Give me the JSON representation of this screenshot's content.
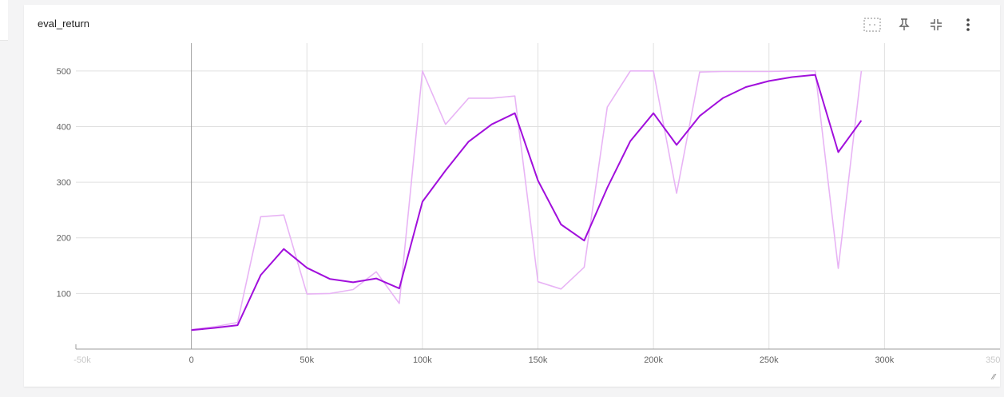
{
  "card": {
    "title": "eval_return",
    "toolbar": [
      {
        "name": "fit-domain-button",
        "icon": "fit-domain-icon"
      },
      {
        "name": "pin-button",
        "icon": "pin-icon"
      },
      {
        "name": "collapse-button",
        "icon": "collapse-icon"
      },
      {
        "name": "more-options-button",
        "icon": "more-vert-icon"
      }
    ]
  },
  "colors": {
    "smoothed": "#a10fdc",
    "raw": "#e8b4f5",
    "grid": "#e0e0e0",
    "axis": "#9e9e9e"
  },
  "chart_data": {
    "type": "line",
    "title": "eval_return",
    "xlabel": "",
    "ylabel": "",
    "xlim": [
      -50000,
      350000
    ],
    "ylim": [
      0,
      550
    ],
    "x_ticks": [
      0,
      50000,
      100000,
      150000,
      200000,
      250000,
      300000
    ],
    "x_tick_labels": [
      "0",
      "50k",
      "100k",
      "150k",
      "200k",
      "250k",
      "300k"
    ],
    "x_tick_faint_labels": [
      "-50k",
      "350k"
    ],
    "y_ticks": [
      100,
      200,
      300,
      400,
      500
    ],
    "y_tick_labels": [
      "100",
      "200",
      "300",
      "400",
      "500"
    ],
    "grid": true,
    "x": [
      0,
      10000,
      20000,
      30000,
      40000,
      50000,
      60000,
      70000,
      80000,
      90000,
      100000,
      110000,
      120000,
      130000,
      140000,
      150000,
      160000,
      170000,
      180000,
      190000,
      200000,
      210000,
      220000,
      230000,
      240000,
      250000,
      260000,
      270000,
      280000,
      290000
    ],
    "series": [
      {
        "style": "raw",
        "values": [
          35,
          40,
          48,
          238,
          241,
          99,
          100,
          107,
          139,
          82,
          500,
          404,
          451,
          451,
          455,
          121,
          108,
          147,
          435,
          500,
          500,
          280,
          498,
          499,
          499,
          499,
          500,
          500,
          145,
          500
        ]
      },
      {
        "style": "smoothed",
        "values": [
          34,
          38,
          43,
          133,
          180,
          146,
          126,
          120,
          127,
          109,
          265,
          321,
          373,
          404,
          424,
          303,
          224,
          195,
          290,
          374,
          424,
          367,
          419,
          451,
          471,
          482,
          489,
          493,
          354,
          411
        ]
      }
    ]
  }
}
